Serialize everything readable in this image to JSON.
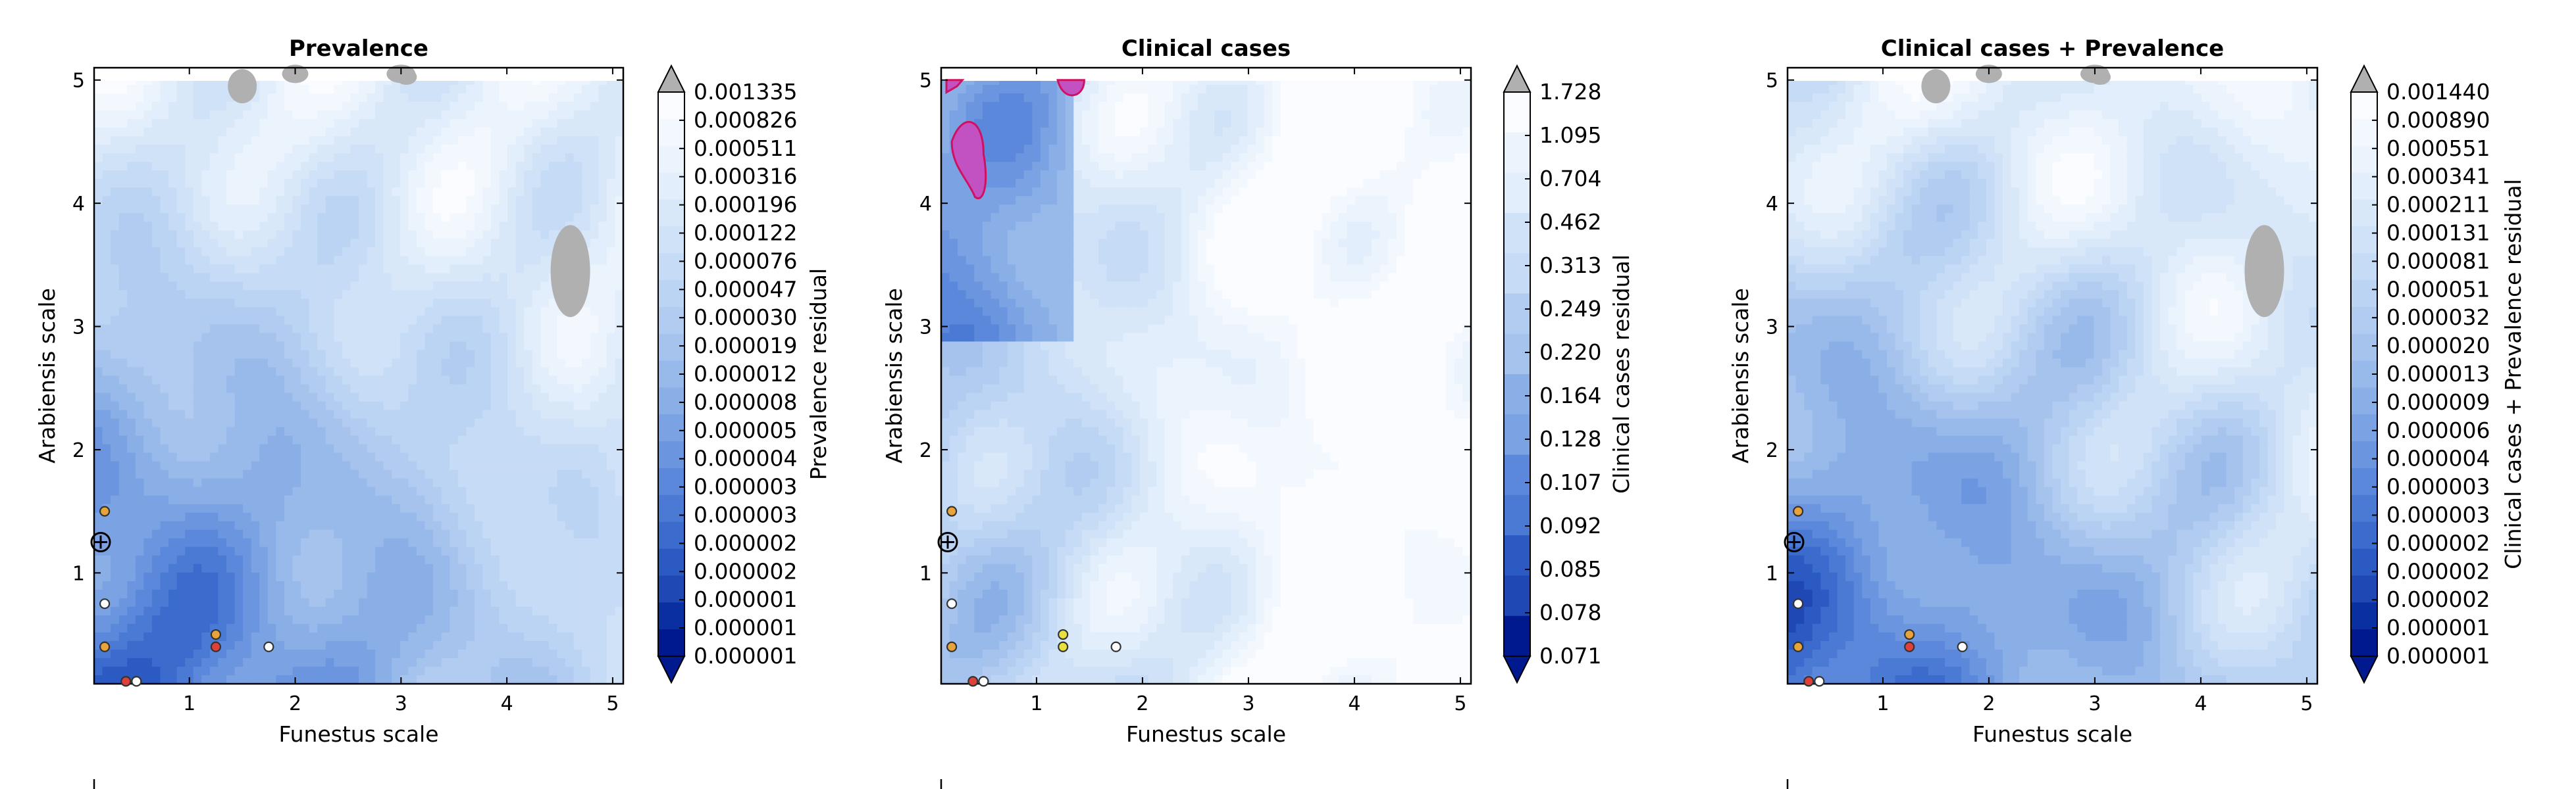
{
  "colors": {
    "seq": [
      "#00198f",
      "#0a2fa0",
      "#1f48b4",
      "#2b5ac2",
      "#3a6bcd",
      "#4a7ad4",
      "#5b88da",
      "#6b96df",
      "#7ba3e3",
      "#8aafe7",
      "#98baea",
      "#a5c3ed",
      "#b1ccf0",
      "#bcd4f3",
      "#c6dbf5",
      "#d0e2f7",
      "#d9e8f9",
      "#e2eefb",
      "#ebf3fc",
      "#f3f8fe",
      "#fafcff"
    ],
    "over": "#b0b0b0",
    "under": "#00198f",
    "highlight": "#c252c2"
  },
  "chart_data": [
    {
      "type": "heatmap",
      "title": "Prevalence",
      "xlabel": "Funestus scale",
      "ylabel": "Arabiensis scale",
      "xlim": [
        0.1,
        5.1
      ],
      "ylim": [
        0.1,
        5.1
      ],
      "xticks": [
        "1",
        "2",
        "3",
        "4",
        "5"
      ],
      "yticks": [
        "1",
        "2",
        "3",
        "4",
        "5"
      ],
      "colorbar_label": "Prevalence residual",
      "colorbar_levels": [
        "0.001335",
        "0.000826",
        "0.000511",
        "0.000316",
        "0.000196",
        "0.000122",
        "0.000076",
        "0.000047",
        "0.000030",
        "0.000019",
        "0.000012",
        "0.000008",
        "0.000005",
        "0.000004",
        "0.000003",
        "0.000003",
        "0.000002",
        "0.000002",
        "0.000001",
        "0.000001",
        "0.000001"
      ],
      "markers": [
        {
          "x": 0.2,
          "y": 1.5,
          "color": "#e8a33a"
        },
        {
          "x": 0.2,
          "y": 0.75,
          "color": "#ffffff"
        },
        {
          "x": 0.2,
          "y": 0.4,
          "color": "#e8a33a"
        },
        {
          "x": 1.25,
          "y": 0.5,
          "color": "#e8a33a"
        },
        {
          "x": 1.25,
          "y": 0.4,
          "color": "#e0403a"
        },
        {
          "x": 1.75,
          "y": 0.4,
          "color": "#ffffff"
        },
        {
          "x": 0.4,
          "y": 0.12,
          "color": "#e0403a"
        },
        {
          "x": 0.5,
          "y": 0.12,
          "color": "#ffffff"
        }
      ]
    },
    {
      "type": "heatmap",
      "title": "Clinical cases",
      "xlabel": "Funestus scale",
      "ylabel": "Arabiensis scale",
      "xlim": [
        0.1,
        5.1
      ],
      "ylim": [
        0.1,
        5.1
      ],
      "xticks": [
        "1",
        "2",
        "3",
        "4",
        "5"
      ],
      "yticks": [
        "1",
        "2",
        "3",
        "4",
        "5"
      ],
      "colorbar_label": "Clinical cases residual",
      "colorbar_levels": [
        "1.728",
        "1.095",
        "0.704",
        "0.462",
        "0.313",
        "0.249",
        "0.220",
        "0.164",
        "0.128",
        "0.107",
        "0.092",
        "0.085",
        "0.078",
        "0.071"
      ],
      "markers": [
        {
          "x": 0.2,
          "y": 1.5,
          "color": "#e8a33a"
        },
        {
          "x": 0.2,
          "y": 0.75,
          "color": "#ffffff"
        },
        {
          "x": 0.2,
          "y": 0.4,
          "color": "#e8a33a"
        },
        {
          "x": 1.25,
          "y": 0.5,
          "color": "#e8e040"
        },
        {
          "x": 1.25,
          "y": 0.4,
          "color": "#e8e040"
        },
        {
          "x": 1.75,
          "y": 0.4,
          "color": "#ffffff"
        },
        {
          "x": 0.4,
          "y": 0.12,
          "color": "#e0403a"
        },
        {
          "x": 0.5,
          "y": 0.12,
          "color": "#ffffff"
        }
      ]
    },
    {
      "type": "heatmap",
      "title": "Clinical cases + Prevalence",
      "xlabel": "Funestus scale",
      "ylabel": "Arabiensis scale",
      "xlim": [
        0.1,
        5.1
      ],
      "ylim": [
        0.1,
        5.1
      ],
      "xticks": [
        "1",
        "2",
        "3",
        "4",
        "5"
      ],
      "yticks": [
        "1",
        "2",
        "3",
        "4",
        "5"
      ],
      "colorbar_label": "Clinical cases + Prevalence residual",
      "colorbar_levels": [
        "0.001440",
        "0.000890",
        "0.000551",
        "0.000341",
        "0.000211",
        "0.000131",
        "0.000081",
        "0.000051",
        "0.000032",
        "0.000020",
        "0.000013",
        "0.000009",
        "0.000006",
        "0.000004",
        "0.000003",
        "0.000003",
        "0.000002",
        "0.000002",
        "0.000002",
        "0.000001",
        "0.000001"
      ],
      "markers": [
        {
          "x": 0.2,
          "y": 1.5,
          "color": "#e8a33a"
        },
        {
          "x": 0.2,
          "y": 0.75,
          "color": "#ffffff"
        },
        {
          "x": 0.2,
          "y": 0.4,
          "color": "#e8a33a"
        },
        {
          "x": 1.25,
          "y": 0.5,
          "color": "#e8a33a"
        },
        {
          "x": 1.25,
          "y": 0.4,
          "color": "#e0403a"
        },
        {
          "x": 1.75,
          "y": 0.4,
          "color": "#ffffff"
        },
        {
          "x": 0.3,
          "y": 0.12,
          "color": "#e0403a"
        },
        {
          "x": 0.4,
          "y": 0.12,
          "color": "#ffffff"
        }
      ]
    }
  ]
}
